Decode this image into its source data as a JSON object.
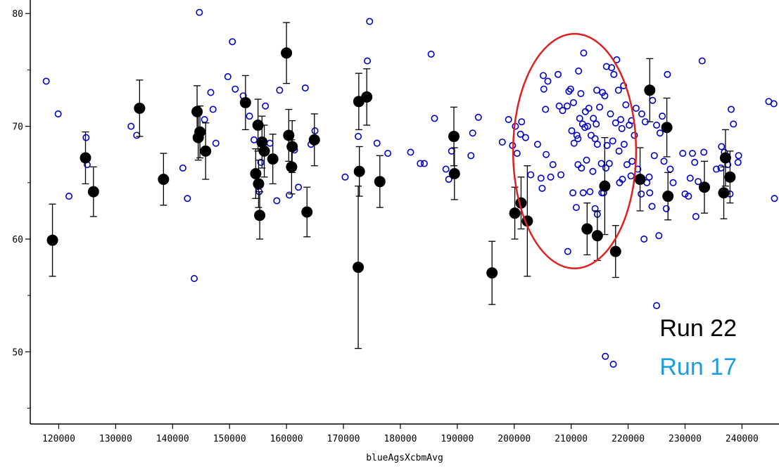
{
  "chart_data": {
    "type": "scatter",
    "title": "",
    "xlabel": "blueAgsXcbmAvg",
    "ylabel": "",
    "xlim": [
      115000,
      246500
    ],
    "ylim": [
      43.6,
      81.2
    ],
    "x_ticks": [
      120000,
      130000,
      140000,
      150000,
      160000,
      170000,
      180000,
      190000,
      200000,
      210000,
      220000,
      230000,
      240000
    ],
    "y_ticks": [
      50,
      60,
      70,
      80
    ],
    "y_minor_ticks": [
      45,
      55,
      65,
      75
    ],
    "grid": false,
    "legend_position": "bottom-right",
    "legend": [
      {
        "label": "Run 22",
        "color": "#000000"
      },
      {
        "label": "Run 17",
        "color": "#1a9ee0"
      }
    ],
    "highlight_ellipse": {
      "center": [
        210600,
        67.8
      ],
      "radius_x": 10800,
      "radius_y": 10.4,
      "color": "#e02020"
    },
    "series": [
      {
        "name": "Run 22",
        "marker": "filled-circle",
        "color": "#000000",
        "points": [
          [
            118900,
            59.9,
            3.2
          ],
          [
            124700,
            67.2,
            2.3
          ],
          [
            126100,
            64.2,
            2.2
          ],
          [
            134200,
            71.6,
            2.5
          ],
          [
            138400,
            65.3,
            2.3
          ],
          [
            144300,
            71.3,
            2.3
          ],
          [
            144500,
            69.0,
            2.0
          ],
          [
            144800,
            69.5,
            2.3
          ],
          [
            145800,
            67.8,
            2.5
          ],
          [
            152800,
            72.1,
            2.4
          ],
          [
            154600,
            65.8,
            2.2
          ],
          [
            155000,
            70.1,
            2.3
          ],
          [
            155100,
            64.9,
            2.1
          ],
          [
            155300,
            62.1,
            2.1
          ],
          [
            155700,
            68.6,
            2.3
          ],
          [
            156100,
            67.8,
            2.3
          ],
          [
            157600,
            67.1,
            2.2
          ],
          [
            160000,
            76.5,
            2.7
          ],
          [
            160400,
            69.2,
            2.3
          ],
          [
            160900,
            66.4,
            2.4
          ],
          [
            161000,
            68.2,
            2.3
          ],
          [
            163600,
            62.4,
            2.2
          ],
          [
            164900,
            68.8,
            2.3
          ],
          [
            172600,
            57.5,
            7.2
          ],
          [
            172700,
            72.2,
            2.5
          ],
          [
            172800,
            66.0,
            2.2
          ],
          [
            174100,
            72.6,
            2.5
          ],
          [
            176400,
            65.1,
            2.3
          ],
          [
            189400,
            69.1,
            2.6
          ],
          [
            189500,
            65.8,
            2.3
          ],
          [
            196100,
            57.0,
            2.8
          ],
          [
            200100,
            62.3,
            2.3
          ],
          [
            201200,
            63.2,
            2.3
          ],
          [
            202300,
            61.6,
            4.9
          ],
          [
            212800,
            60.9,
            2.3
          ],
          [
            214600,
            60.3,
            2.2
          ],
          [
            215900,
            64.7,
            4.3
          ],
          [
            217800,
            58.9,
            2.3
          ],
          [
            222100,
            65.3,
            2.8
          ],
          [
            223800,
            73.2,
            2.8
          ],
          [
            226800,
            69.9,
            2.6
          ],
          [
            227000,
            63.8,
            2.1
          ],
          [
            233400,
            64.6,
            2.3
          ],
          [
            236800,
            64.1,
            2.3
          ],
          [
            237100,
            67.2,
            2.5
          ],
          [
            237900,
            65.5,
            2.3
          ]
        ]
      },
      {
        "name": "Run 17",
        "marker": "open-circle",
        "color": "#0000cc",
        "points": [
          [
            117800,
            74.0
          ],
          [
            119900,
            71.1
          ],
          [
            121800,
            63.8
          ],
          [
            124800,
            69.0
          ],
          [
            125000,
            66.6
          ],
          [
            132700,
            70.0
          ],
          [
            133700,
            69.2
          ],
          [
            141800,
            66.3
          ],
          [
            142600,
            63.6
          ],
          [
            143800,
            56.5
          ],
          [
            144700,
            80.1
          ],
          [
            145600,
            70.6
          ],
          [
            146700,
            73.0
          ],
          [
            147100,
            71.5
          ],
          [
            147600,
            68.5
          ],
          [
            149700,
            74.4
          ],
          [
            150500,
            77.5
          ],
          [
            151000,
            73.3
          ],
          [
            152400,
            72.7
          ],
          [
            153500,
            70.9
          ],
          [
            154300,
            68.8
          ],
          [
            155200,
            64.2
          ],
          [
            155500,
            66.8
          ],
          [
            156300,
            71.8
          ],
          [
            157100,
            68.5
          ],
          [
            158300,
            63.4
          ],
          [
            158800,
            73.2
          ],
          [
            160500,
            63.9
          ],
          [
            161400,
            67.9
          ],
          [
            162100,
            64.6
          ],
          [
            163300,
            73.4
          ],
          [
            164300,
            68.4
          ],
          [
            165000,
            69.6
          ],
          [
            170300,
            65.5
          ],
          [
            172600,
            69.1
          ],
          [
            174200,
            75.8
          ],
          [
            174600,
            79.3
          ],
          [
            175900,
            68.5
          ],
          [
            177800,
            67.6
          ],
          [
            181800,
            67.7
          ],
          [
            183500,
            66.7
          ],
          [
            184200,
            66.7
          ],
          [
            185400,
            76.4
          ],
          [
            186000,
            70.7
          ],
          [
            188000,
            66.2
          ],
          [
            188500,
            65.3
          ],
          [
            189000,
            67.8
          ],
          [
            193700,
            70.8
          ],
          [
            192400,
            67.4
          ],
          [
            192700,
            69.4
          ],
          [
            197900,
            68.6
          ],
          [
            199000,
            70.6
          ],
          [
            199700,
            68.3
          ],
          [
            200500,
            67.6
          ],
          [
            200200,
            70.0
          ],
          [
            201100,
            69.3
          ],
          [
            201300,
            70.4
          ],
          [
            202000,
            69.0
          ],
          [
            202900,
            65.7
          ],
          [
            204100,
            68.4
          ],
          [
            204700,
            65.4
          ],
          [
            204900,
            64.5
          ],
          [
            205200,
            73.3
          ],
          [
            205500,
            71.5
          ],
          [
            205100,
            74.5
          ],
          [
            205600,
            67.5
          ],
          [
            205900,
            74.0
          ],
          [
            206400,
            65.5
          ],
          [
            206800,
            66.6
          ],
          [
            207700,
            74.6
          ],
          [
            207900,
            71.8
          ],
          [
            208500,
            71.4
          ],
          [
            208200,
            65.7
          ],
          [
            209600,
            73.1
          ],
          [
            209900,
            73.3
          ],
          [
            209300,
            71.8
          ],
          [
            210100,
            69.6
          ],
          [
            210400,
            72.1
          ],
          [
            210500,
            68.5
          ],
          [
            211000,
            69.2
          ],
          [
            211500,
            70.7
          ],
          [
            211700,
            72.9
          ],
          [
            211200,
            68.9
          ],
          [
            212000,
            70.2
          ],
          [
            212500,
            71.3
          ],
          [
            212400,
            69.9
          ],
          [
            212900,
            70.0
          ],
          [
            213100,
            71.6
          ],
          [
            213500,
            69.2
          ],
          [
            213900,
            70.7
          ],
          [
            214200,
            68.9
          ],
          [
            214400,
            70.2
          ],
          [
            214600,
            68.4
          ],
          [
            215000,
            71.7
          ],
          [
            215300,
            66.7
          ],
          [
            215500,
            73.0
          ],
          [
            215900,
            72.7
          ],
          [
            216300,
            68.3
          ],
          [
            216700,
            66.7
          ],
          [
            217300,
            68.7
          ],
          [
            211200,
            66.6
          ],
          [
            211800,
            66.3
          ],
          [
            212100,
            64.1
          ],
          [
            212700,
            67.0
          ],
          [
            213300,
            64.2
          ],
          [
            213800,
            66.0
          ],
          [
            214200,
            62.7
          ],
          [
            214600,
            62.2
          ],
          [
            215400,
            64.1
          ],
          [
            215700,
            64.1
          ],
          [
            216100,
            66.3
          ],
          [
            212200,
            76.5
          ],
          [
            211300,
            74.9
          ],
          [
            214500,
            73.2
          ],
          [
            216200,
            75.3
          ],
          [
            217100,
            75.2
          ],
          [
            217500,
            74.6
          ],
          [
            218000,
            75.9
          ],
          [
            218300,
            73.2
          ],
          [
            219200,
            73.6
          ],
          [
            219600,
            71.9
          ],
          [
            220200,
            70.1
          ],
          [
            220600,
            70.5
          ],
          [
            221100,
            69.2
          ],
          [
            221400,
            71.6
          ],
          [
            217800,
            70.3
          ],
          [
            218900,
            69.8
          ],
          [
            219300,
            68.4
          ],
          [
            218400,
            67.8
          ],
          [
            219800,
            66.6
          ],
          [
            220500,
            65.6
          ],
          [
            219000,
            65.3
          ],
          [
            218500,
            65.0
          ],
          [
            210300,
            64.1
          ],
          [
            210900,
            62.8
          ],
          [
            209400,
            58.9
          ],
          [
            216000,
            49.6
          ],
          [
            217400,
            48.9
          ],
          [
            221700,
            66.2
          ],
          [
            222300,
            64.0
          ],
          [
            222400,
            71.1
          ],
          [
            223000,
            70.4
          ],
          [
            223300,
            65.0
          ],
          [
            223800,
            64.1
          ],
          [
            224200,
            62.9
          ],
          [
            224600,
            67.4
          ],
          [
            225000,
            70.1
          ],
          [
            225600,
            69.4
          ],
          [
            226000,
            70.9
          ],
          [
            226300,
            66.9
          ],
          [
            222800,
            60.0
          ],
          [
            225400,
            60.3
          ],
          [
            226900,
            74.6
          ],
          [
            227400,
            66.2
          ],
          [
            227900,
            65.0
          ],
          [
            226700,
            62.7
          ],
          [
            229600,
            67.6
          ],
          [
            230000,
            64.0
          ],
          [
            230600,
            63.8
          ],
          [
            230900,
            65.4
          ],
          [
            231300,
            67.6
          ],
          [
            231700,
            66.8
          ],
          [
            231900,
            62.0
          ],
          [
            232300,
            65.1
          ],
          [
            233300,
            67.7
          ],
          [
            233000,
            75.8
          ],
          [
            235500,
            66.2
          ],
          [
            236400,
            68.2
          ],
          [
            236300,
            66.3
          ],
          [
            236900,
            67.7
          ],
          [
            237500,
            66.6
          ],
          [
            237900,
            64.0
          ],
          [
            238100,
            71.5
          ],
          [
            238500,
            70.2
          ],
          [
            239400,
            67.4
          ],
          [
            239300,
            66.8
          ],
          [
            225000,
            54.1
          ],
          [
            244700,
            72.2
          ],
          [
            245600,
            72.0
          ],
          [
            245700,
            63.6
          ],
          [
            223700,
            65.5
          ],
          [
            224300,
            72.3
          ],
          [
            220700,
            66.9
          ],
          [
            218700,
            70.6
          ],
          [
            216900,
            71.1
          ]
        ]
      }
    ]
  }
}
